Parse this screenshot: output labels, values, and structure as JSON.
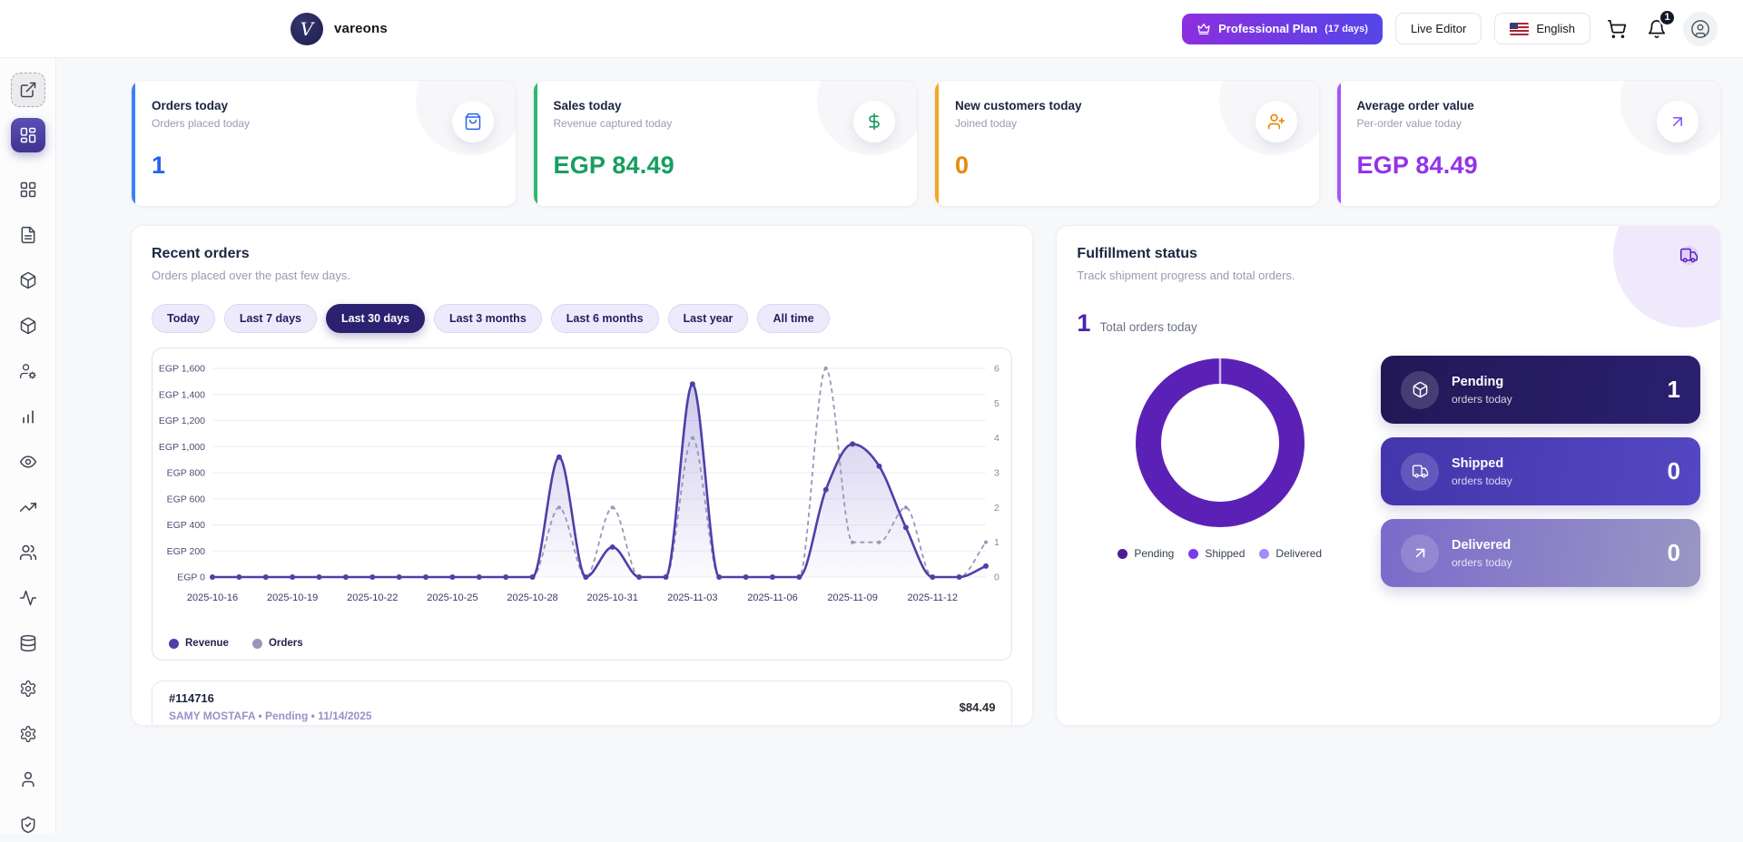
{
  "header": {
    "brand": "vareons",
    "logo_letter": "V",
    "plan_button": {
      "label": "Professional Plan",
      "days": "(17 days)"
    },
    "live_editor_label": "Live Editor",
    "language": "English",
    "notification_count": "1"
  },
  "sidebar": {
    "items": [
      {
        "icon": "external-link",
        "style": "dashed"
      },
      {
        "icon": "layout-dashboard",
        "style": "active"
      },
      {
        "icon": "layout-grid"
      },
      {
        "icon": "file-text"
      },
      {
        "icon": "package"
      },
      {
        "icon": "package"
      },
      {
        "icon": "user-cog"
      },
      {
        "icon": "bar-chart"
      },
      {
        "icon": "eye"
      },
      {
        "icon": "trending-up"
      },
      {
        "icon": "users"
      },
      {
        "icon": "activity"
      },
      {
        "icon": "database"
      },
      {
        "icon": "settings"
      },
      {
        "icon": "settings"
      },
      {
        "icon": "user"
      },
      {
        "icon": "shield-check"
      }
    ]
  },
  "stat_cards": [
    {
      "title": "Orders today",
      "subtitle": "Orders placed today",
      "value": "1",
      "accent": "#3b82f6",
      "value_color": "#2563eb",
      "icon": "shopping-bag",
      "icon_color": "#2563eb"
    },
    {
      "title": "Sales today",
      "subtitle": "Revenue captured today",
      "value": "EGP 84.49",
      "accent": "#2eb873",
      "value_color": "#179e5f",
      "icon": "dollar-sign",
      "icon_color": "#179e5f"
    },
    {
      "title": "New customers today",
      "subtitle": "Joined today",
      "value": "0",
      "accent": "#f5a623",
      "value_color": "#e8890c",
      "icon": "user-plus",
      "icon_color": "#e8890c"
    },
    {
      "title": "Average order value",
      "subtitle": "Per-order value today",
      "value": "EGP 84.49",
      "accent": "#a855f7",
      "value_color": "#9333ea",
      "icon": "arrow-up-right",
      "icon_color": "#8b5cf6"
    }
  ],
  "recent_orders": {
    "title": "Recent orders",
    "subtitle": "Orders placed over the past few days.",
    "filters": [
      "Today",
      "Last 7 days",
      "Last 30 days",
      "Last 3 months",
      "Last 6 months",
      "Last year",
      "All time"
    ],
    "active_filter": "Last 30 days",
    "order_row": {
      "id": "#114716",
      "meta": "SAMY MOSTAFA • Pending • 11/14/2025",
      "amount": "$84.49"
    }
  },
  "fulfillment": {
    "title": "Fulfillment status",
    "subtitle": "Track shipment progress and total orders.",
    "total": "1",
    "total_label": "Total orders today",
    "statuses": [
      {
        "label": "Pending",
        "sub": "orders today",
        "value": "1",
        "icon": "package",
        "bg_from": "#221856",
        "bg_to": "#2b2070"
      },
      {
        "label": "Shipped",
        "sub": "orders today",
        "value": "0",
        "icon": "truck",
        "bg_from": "#4335ab",
        "bg_to": "#5448c2"
      },
      {
        "label": "Delivered",
        "sub": "orders today",
        "value": "0",
        "icon": "arrow-up-right",
        "bg_from": "#7b6acb",
        "bg_to": "#9997c4"
      }
    ]
  },
  "chart_data": [
    {
      "type": "line",
      "title": "Recent orders - Last 30 days",
      "x": [
        "2025-10-16",
        "2025-10-17",
        "2025-10-18",
        "2025-10-19",
        "2025-10-20",
        "2025-10-21",
        "2025-10-22",
        "2025-10-23",
        "2025-10-24",
        "2025-10-25",
        "2025-10-26",
        "2025-10-27",
        "2025-10-28",
        "2025-10-29",
        "2025-10-30",
        "2025-10-31",
        "2025-11-01",
        "2025-11-02",
        "2025-11-03",
        "2025-11-04",
        "2025-11-05",
        "2025-11-06",
        "2025-11-07",
        "2025-11-08",
        "2025-11-09",
        "2025-11-10",
        "2025-11-11",
        "2025-11-12",
        "2025-11-13",
        "2025-11-14"
      ],
      "x_tick_every": 3,
      "series": [
        {
          "name": "Revenue",
          "axis": "left",
          "color": "#4c40a8",
          "style": "solid",
          "values": [
            0,
            0,
            0,
            0,
            0,
            0,
            0,
            0,
            0,
            0,
            0,
            0,
            0,
            920,
            0,
            230,
            0,
            0,
            1480,
            0,
            0,
            0,
            0,
            670,
            1020,
            850,
            380,
            0,
            0,
            84.49
          ]
        },
        {
          "name": "Orders",
          "axis": "right",
          "color": "#9896ba",
          "style": "dashed",
          "values": [
            0,
            0,
            0,
            0,
            0,
            0,
            0,
            0,
            0,
            0,
            0,
            0,
            0,
            2,
            0,
            2,
            0,
            0,
            4,
            0,
            0,
            0,
            0,
            6,
            1,
            1,
            2,
            0,
            0,
            1
          ]
        }
      ],
      "y_left_range": [
        0,
        1600
      ],
      "y_left_ticks": [
        "EGP 0",
        "EGP 200",
        "EGP 400",
        "EGP 600",
        "EGP 800",
        "EGP 1,000",
        "EGP 1,200",
        "EGP 1,400",
        "EGP 1,600"
      ],
      "y_right_range": [
        0,
        6
      ],
      "y_right_ticks": [
        "0",
        "1",
        "2",
        "3",
        "4",
        "5",
        "6"
      ],
      "grid": true,
      "legend_position": "bottom-left"
    },
    {
      "type": "pie",
      "title": "Fulfillment status",
      "labels": [
        "Pending",
        "Shipped",
        "Delivered"
      ],
      "values": [
        1,
        0,
        0
      ],
      "colors": [
        "#4c1d95",
        "#7c3aed",
        "#a78bfa"
      ],
      "ring_color": "#5b21b6",
      "legend_position": "bottom"
    }
  ]
}
